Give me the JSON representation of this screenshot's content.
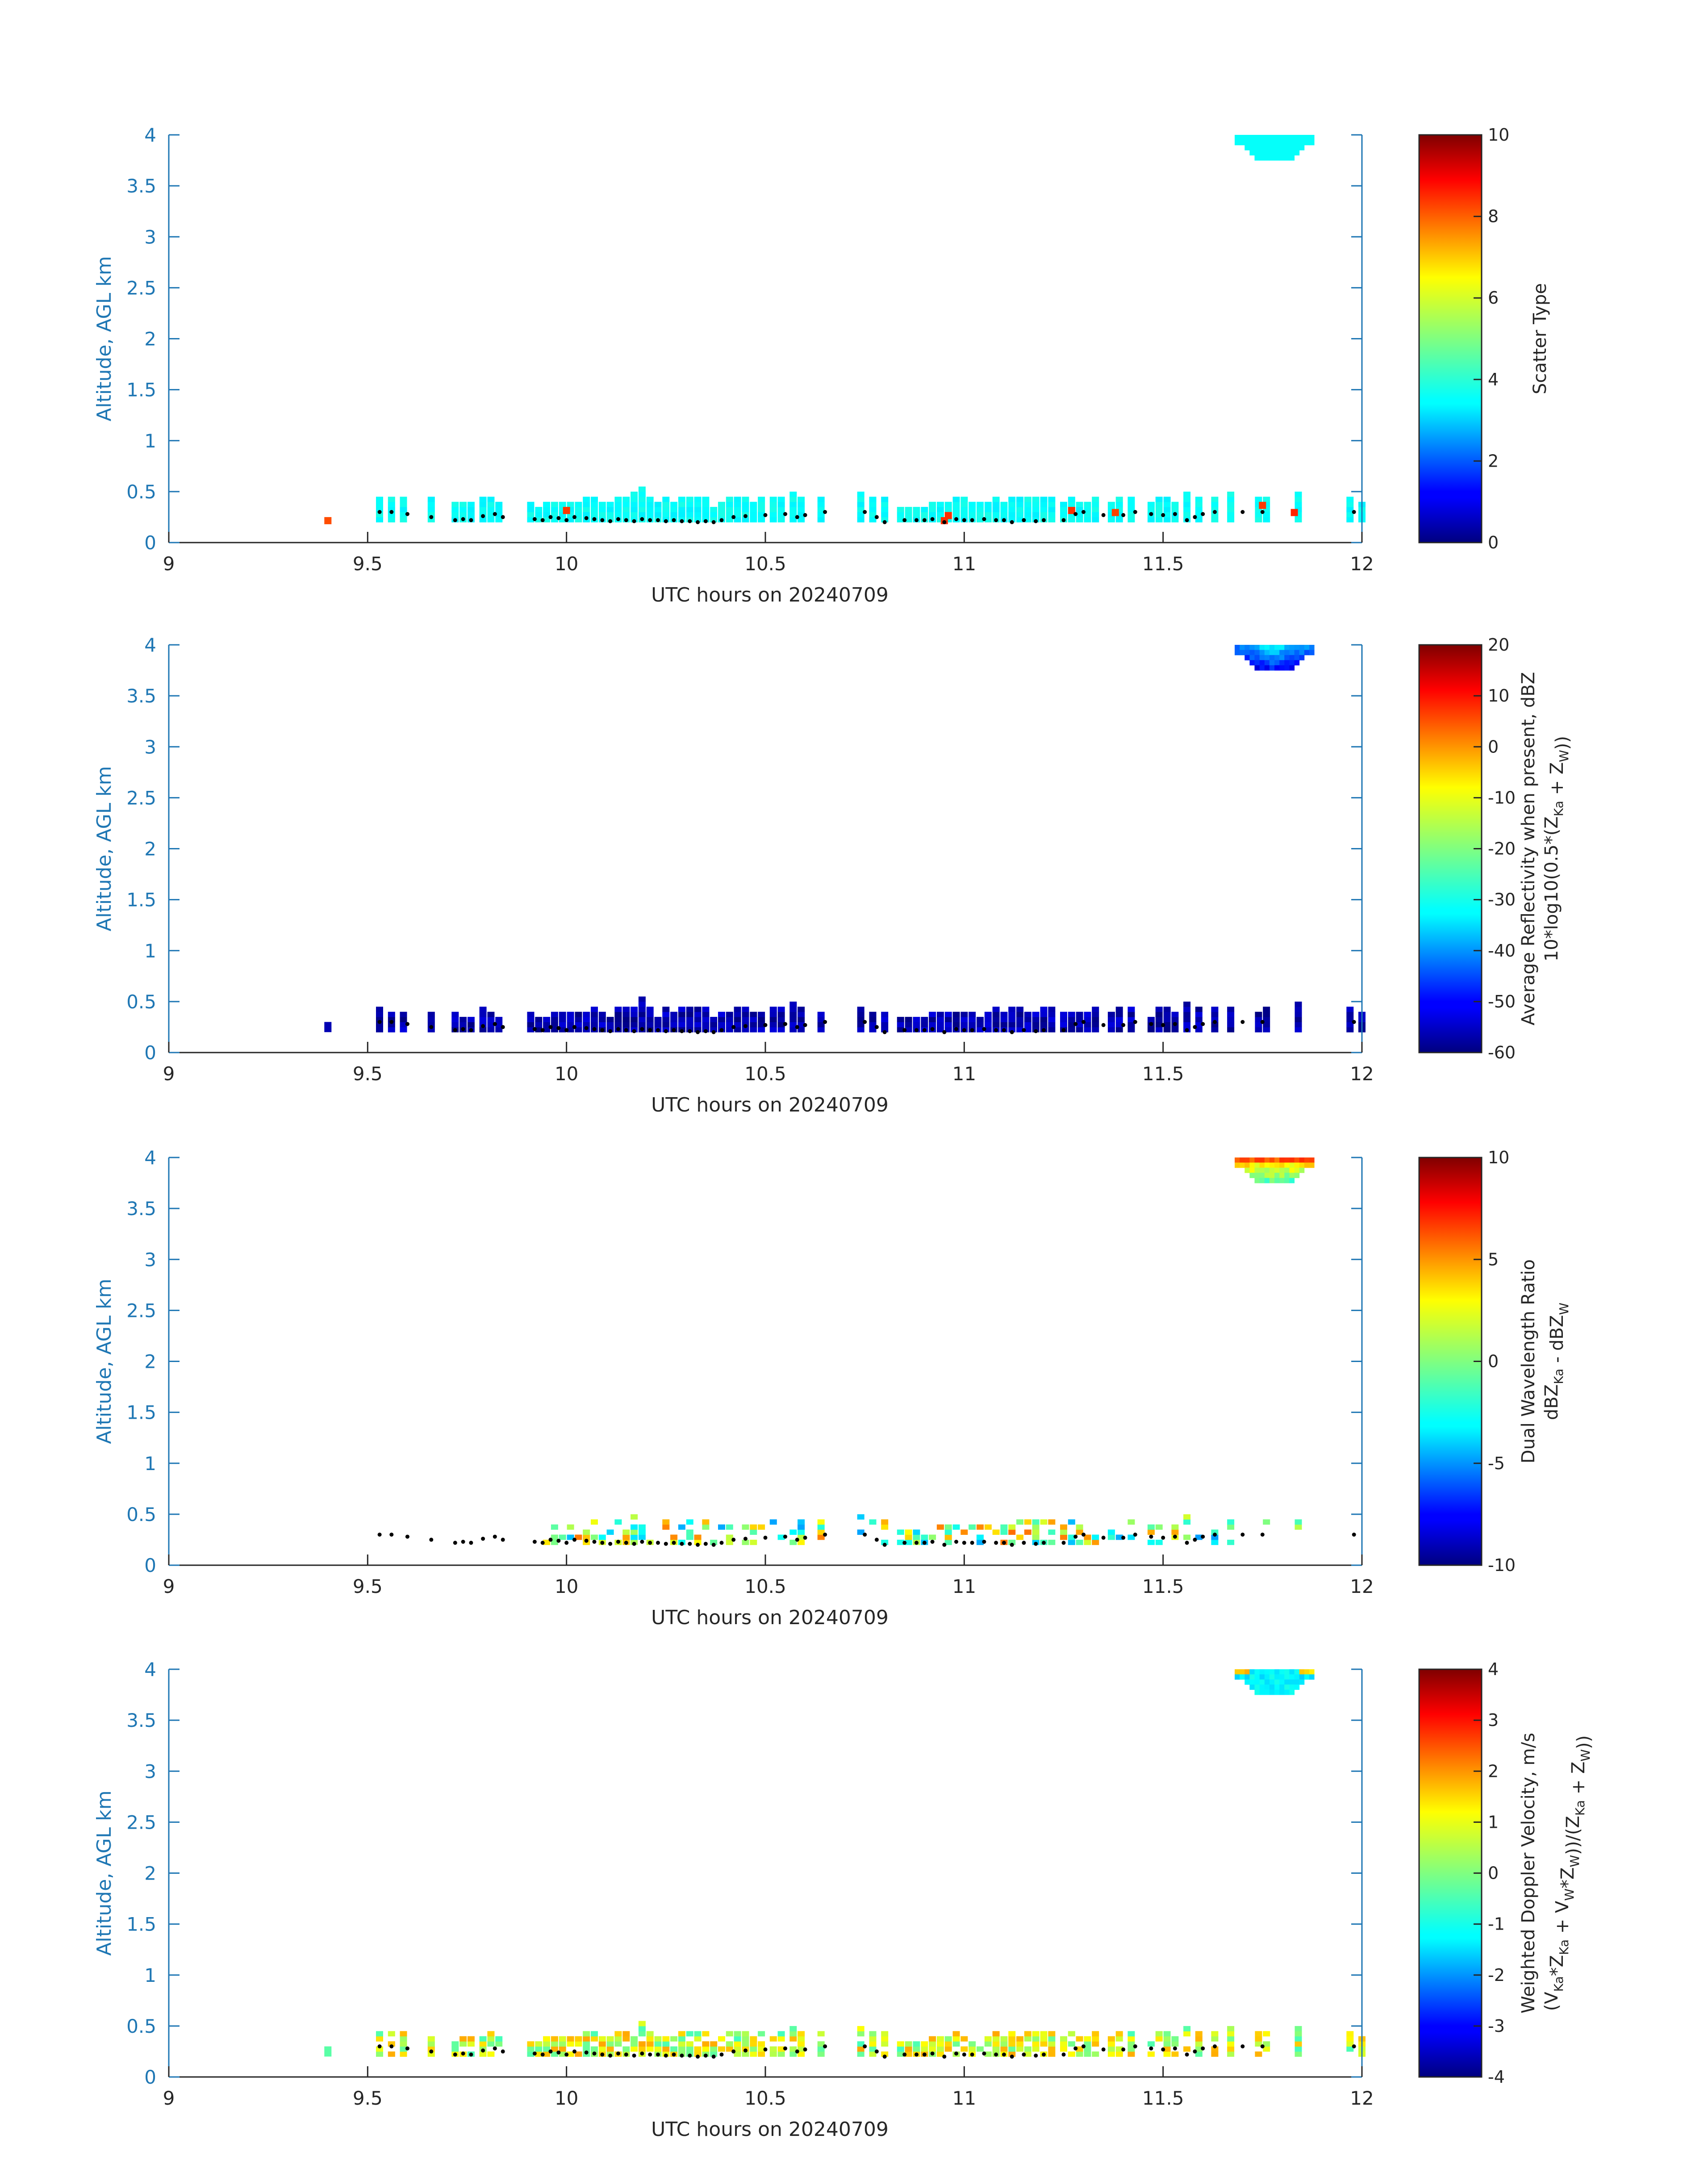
{
  "chart_data": [
    {
      "type": "heatmap",
      "id": "scatter",
      "xlabel": "UTC hours on 20240709",
      "ylabel": "Altitude, AGL km",
      "xlim": [
        9,
        12
      ],
      "ylim": [
        0,
        4
      ],
      "xticks": [
        "9",
        "9.5",
        "10",
        "10.5",
        "11",
        "11.5",
        "12"
      ],
      "yticks": [
        "0",
        "0.5",
        "1",
        "1.5",
        "2",
        "2.5",
        "3",
        "3.5",
        "4"
      ],
      "colorbar": {
        "range": [
          0,
          10
        ],
        "ticks": [
          "0",
          "2",
          "4",
          "6",
          "8",
          "10"
        ],
        "label_lines": [
          [
            {
              "t": "Scatter Type"
            }
          ]
        ]
      },
      "value_note": "Scatter type mostly 3.8 (cyan) in the 0.2-0.45 km layer, isolated 8 (red) gates near 9.4, 10.0, 10.95, 11.27, 11.38, 11.75 and 11.83 h, cloud near 3.8-4 km at 11.7-11.9 h",
      "cells": [
        [
          9.4,
          0.2,
          8.0
        ],
        [
          10.0,
          0.3,
          8.2
        ],
        [
          10.95,
          0.2,
          8.3
        ],
        [
          10.96,
          0.25,
          8.3
        ],
        [
          11.27,
          0.3,
          8.3
        ],
        [
          11.38,
          0.28,
          8.1
        ],
        [
          11.75,
          0.35,
          8.2
        ],
        [
          11.83,
          0.28,
          8.4
        ]
      ],
      "base": {
        "value": 3.8,
        "default": 3.8,
        "cloud": 3.8
      }
    },
    {
      "type": "heatmap",
      "id": "reflectivity",
      "xlabel": "UTC hours on 20240709",
      "ylabel": "Altitude, AGL km",
      "xlim": [
        9,
        12
      ],
      "ylim": [
        0,
        4
      ],
      "xticks": [
        "9",
        "9.5",
        "10",
        "10.5",
        "11",
        "11.5",
        "12"
      ],
      "yticks": [
        "0",
        "0.5",
        "1",
        "1.5",
        "2",
        "2.5",
        "3",
        "3.5",
        "4"
      ],
      "colorbar": {
        "range": [
          -60,
          20
        ],
        "ticks": [
          "-60",
          "-50",
          "-40",
          "-30",
          "-20",
          "-10",
          "0",
          "10",
          "20"
        ],
        "label_lines": [
          [
            {
              "t": "Average Reflectivity when present, dBZ"
            }
          ],
          [
            {
              "t": "10*log10(0.5*(Z"
            },
            {
              "t": "Ka",
              "sub": true
            },
            {
              "t": " + Z"
            },
            {
              "t": "W",
              "sub": true
            },
            {
              "t": "))"
            }
          ]
        ]
      },
      "value_note": "Boundary-layer echoes about -55 to -60 dBZ; cloud top region -45 to -25 dBZ",
      "cells": [],
      "base": {
        "value": -57,
        "default": -57,
        "cloud": -30
      }
    },
    {
      "type": "heatmap",
      "id": "dwr",
      "xlabel": "UTC hours on 20240709",
      "ylabel": "Altitude, AGL km",
      "xlim": [
        9,
        12
      ],
      "ylim": [
        0,
        4
      ],
      "xticks": [
        "9",
        "9.5",
        "10",
        "10.5",
        "11",
        "11.5",
        "12"
      ],
      "yticks": [
        "0",
        "0.5",
        "1",
        "1.5",
        "2",
        "2.5",
        "3",
        "3.5",
        "4"
      ],
      "colorbar": {
        "range": [
          -10,
          10
        ],
        "ticks": [
          "-10",
          "-5",
          "0",
          "5",
          "10"
        ],
        "label_lines": [
          [
            {
              "t": "Dual Wavelength Ratio"
            }
          ],
          [
            {
              "t": "dBZ"
            },
            {
              "t": "Ka",
              "sub": true
            },
            {
              "t": " - dBZ"
            },
            {
              "t": "W",
              "sub": true
            }
          ]
        ]
      },
      "value_note": "Sparse boundary-layer values between -6 and +4 dB; cloud region +2 to +7 dB",
      "cells": [],
      "base": {
        "value": 0,
        "default": 0,
        "cloud": 3
      }
    },
    {
      "type": "heatmap",
      "id": "velocity",
      "xlabel": "UTC hours on 20240709",
      "ylabel": "Altitude, AGL km",
      "xlim": [
        9,
        12
      ],
      "ylim": [
        0,
        4
      ],
      "xticks": [
        "9",
        "9.5",
        "10",
        "10.5",
        "11",
        "11.5",
        "12"
      ],
      "yticks": [
        "0",
        "0.5",
        "1",
        "1.5",
        "2",
        "2.5",
        "3",
        "3.5",
        "4"
      ],
      "colorbar": {
        "range": [
          -4,
          4
        ],
        "ticks": [
          "-4",
          "-3",
          "-2",
          "-1",
          "0",
          "1",
          "2",
          "3",
          "4"
        ],
        "label_lines": [
          [
            {
              "t": "Weighted Doppler Velocity, m/s"
            }
          ],
          [
            {
              "t": "(V"
            },
            {
              "t": "Ka",
              "sub": true
            },
            {
              "t": "*Z"
            },
            {
              "t": "Ka",
              "sub": true
            },
            {
              "t": " + V"
            },
            {
              "t": "W",
              "sub": true
            },
            {
              "t": "*Z"
            },
            {
              "t": "W",
              "sub": true
            },
            {
              "t": "))/(Z"
            },
            {
              "t": "Ka",
              "sub": true
            },
            {
              "t": " + Z"
            },
            {
              "t": "W",
              "sub": true
            },
            {
              "t": "))"
            }
          ]
        ]
      },
      "value_note": "Boundary-layer velocities about -0.5 to +1.5 m/s; cloud region about -1 m/s",
      "cells": [],
      "base": {
        "value": 0.5,
        "default": 0.5,
        "cloud": -1
      }
    }
  ],
  "boundary_layer_top": {
    "note": "black dots marking layer top, roughly 0.22-0.3 km",
    "x": [
      9.53,
      9.56,
      9.6,
      9.66,
      9.72,
      9.74,
      9.76,
      9.79,
      9.82,
      9.84,
      9.92,
      9.94,
      9.96,
      9.98,
      10.0,
      10.02,
      10.05,
      10.07,
      10.09,
      10.11,
      10.13,
      10.15,
      10.17,
      10.19,
      10.21,
      10.23,
      10.25,
      10.27,
      10.29,
      10.31,
      10.33,
      10.35,
      10.37,
      10.39,
      10.42,
      10.45,
      10.5,
      10.55,
      10.58,
      10.6,
      10.65,
      10.75,
      10.78,
      10.8,
      10.85,
      10.88,
      10.9,
      10.92,
      10.95,
      10.98,
      11.0,
      11.02,
      11.05,
      11.08,
      11.1,
      11.12,
      11.15,
      11.18,
      11.2,
      11.25,
      11.28,
      11.3,
      11.35,
      11.4,
      11.43,
      11.47,
      11.5,
      11.53,
      11.56,
      11.58,
      11.6,
      11.63,
      11.7,
      11.75,
      11.98
    ],
    "y": [
      0.3,
      0.3,
      0.28,
      0.25,
      0.22,
      0.23,
      0.22,
      0.26,
      0.28,
      0.25,
      0.23,
      0.22,
      0.25,
      0.24,
      0.22,
      0.25,
      0.24,
      0.23,
      0.22,
      0.21,
      0.23,
      0.22,
      0.21,
      0.23,
      0.22,
      0.22,
      0.21,
      0.22,
      0.21,
      0.21,
      0.2,
      0.21,
      0.2,
      0.22,
      0.25,
      0.26,
      0.27,
      0.28,
      0.25,
      0.27,
      0.3,
      0.3,
      0.25,
      0.2,
      0.22,
      0.22,
      0.22,
      0.23,
      0.2,
      0.23,
      0.22,
      0.22,
      0.23,
      0.22,
      0.22,
      0.2,
      0.22,
      0.21,
      0.22,
      0.22,
      0.28,
      0.3,
      0.27,
      0.27,
      0.3,
      0.28,
      0.27,
      0.28,
      0.22,
      0.25,
      0.28,
      0.3,
      0.3,
      0.3,
      0.3
    ]
  },
  "echo_columns": {
    "note": "occupied time columns (UTC h) and echo top heights (km) of the boundary-layer layer",
    "x": [
      9.53,
      9.56,
      9.59,
      9.66,
      9.72,
      9.74,
      9.76,
      9.79,
      9.81,
      9.83,
      9.91,
      9.93,
      9.95,
      9.97,
      9.99,
      10.01,
      10.03,
      10.05,
      10.07,
      10.09,
      10.11,
      10.13,
      10.15,
      10.17,
      10.19,
      10.21,
      10.23,
      10.25,
      10.27,
      10.29,
      10.31,
      10.33,
      10.35,
      10.37,
      10.39,
      10.41,
      10.43,
      10.45,
      10.47,
      10.49,
      10.52,
      10.54,
      10.57,
      10.59,
      10.64,
      10.74,
      10.77,
      10.8,
      10.84,
      10.86,
      10.88,
      10.9,
      10.92,
      10.94,
      10.96,
      10.98,
      11.0,
      11.02,
      11.04,
      11.06,
      11.08,
      11.1,
      11.12,
      11.14,
      11.16,
      11.18,
      11.2,
      11.22,
      11.25,
      11.27,
      11.29,
      11.31,
      11.33,
      11.37,
      11.39,
      11.42,
      11.47,
      11.49,
      11.51,
      11.53,
      11.56,
      11.59,
      11.63,
      11.67,
      11.74,
      11.76,
      11.84,
      11.97,
      12.0
    ],
    "top": [
      0.42,
      0.4,
      0.42,
      0.42,
      0.33,
      0.33,
      0.33,
      0.4,
      0.4,
      0.35,
      0.33,
      0.3,
      0.33,
      0.33,
      0.33,
      0.35,
      0.33,
      0.38,
      0.38,
      0.33,
      0.35,
      0.38,
      0.38,
      0.45,
      0.5,
      0.38,
      0.33,
      0.4,
      0.35,
      0.38,
      0.38,
      0.38,
      0.38,
      0.3,
      0.35,
      0.4,
      0.4,
      0.4,
      0.35,
      0.4,
      0.38,
      0.38,
      0.45,
      0.4,
      0.38,
      0.45,
      0.38,
      0.38,
      0.3,
      0.3,
      0.3,
      0.3,
      0.33,
      0.35,
      0.35,
      0.4,
      0.4,
      0.35,
      0.35,
      0.35,
      0.4,
      0.35,
      0.4,
      0.38,
      0.4,
      0.4,
      0.4,
      0.38,
      0.35,
      0.38,
      0.35,
      0.35,
      0.38,
      0.35,
      0.38,
      0.4,
      0.35,
      0.38,
      0.38,
      0.35,
      0.45,
      0.4,
      0.4,
      0.45,
      0.42,
      0.42,
      0.45,
      0.38,
      0.35
    ]
  },
  "cloud_top": {
    "note": "inverted cloud cap hanging from 4 km near 11.7-11.9 h",
    "x0": 11.68,
    "x1": 11.88,
    "min_alt": 3.78
  },
  "colors": {
    "axis_blue": "#1f77b4",
    "text": "#262626",
    "dots": "#000000"
  }
}
